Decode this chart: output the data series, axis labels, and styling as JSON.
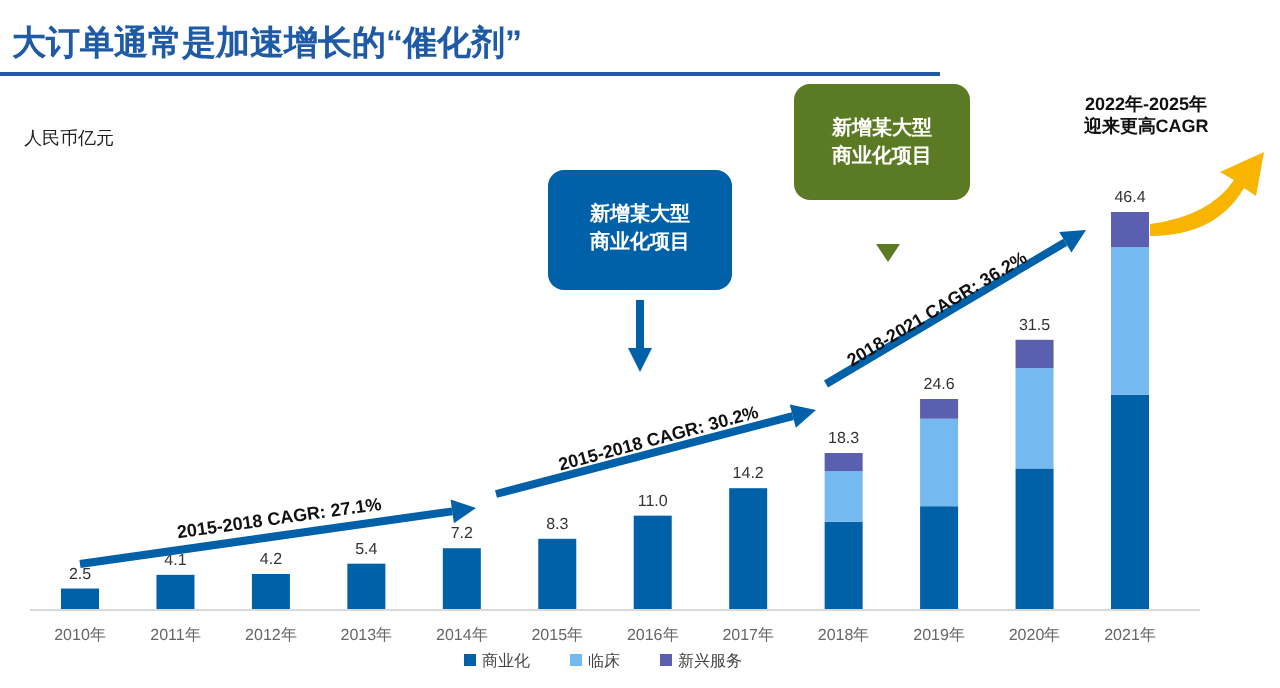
{
  "chart_data": {
    "type": "bar",
    "stacked": true,
    "title": "大订单通常是加速增长的“催化剂”",
    "ylabel": "人民币亿元",
    "categories": [
      "2010年",
      "2011年",
      "2012年",
      "2013年",
      "2014年",
      "2015年",
      "2016年",
      "2017年",
      "2018年",
      "2019年",
      "2020年",
      "2021年"
    ],
    "series": [
      {
        "name": "商业化",
        "color": "#0060a8",
        "values": [
          2.5,
          4.1,
          4.2,
          5.4,
          7.2,
          8.3,
          11.0,
          14.2,
          10.3,
          12.1,
          16.5,
          25.1
        ],
        "value_labels": [
          "2.5",
          "4.1",
          "4.2",
          "5.4",
          "7.2",
          "8.3",
          "11.0",
          "14.2",
          null,
          null,
          null,
          null
        ]
      },
      {
        "name": "临床",
        "color": "#74b9f0",
        "values": [
          null,
          null,
          null,
          null,
          null,
          null,
          null,
          null,
          5.9,
          10.2,
          11.7,
          17.2
        ]
      },
      {
        "name": "新兴服务",
        "color": "#5b5fb0",
        "values": [
          null,
          null,
          null,
          null,
          null,
          null,
          null,
          null,
          2.1,
          2.3,
          3.3,
          4.1
        ]
      }
    ],
    "totals": [
      null,
      null,
      null,
      null,
      null,
      null,
      null,
      null,
      "18.3",
      "24.6",
      "31.5",
      "46.4"
    ],
    "legend": "bottom",
    "annotations": [
      "2015-2018 CAGR: 27.1%",
      "2015-2018 CAGR: 30.2%",
      "2018-2021 CAGR: 36.2%",
      "新增某大型",
      "商业化项目",
      "新增某大型",
      "商业化项目",
      "2022年-2025年",
      "迎来更高CAGR"
    ]
  }
}
